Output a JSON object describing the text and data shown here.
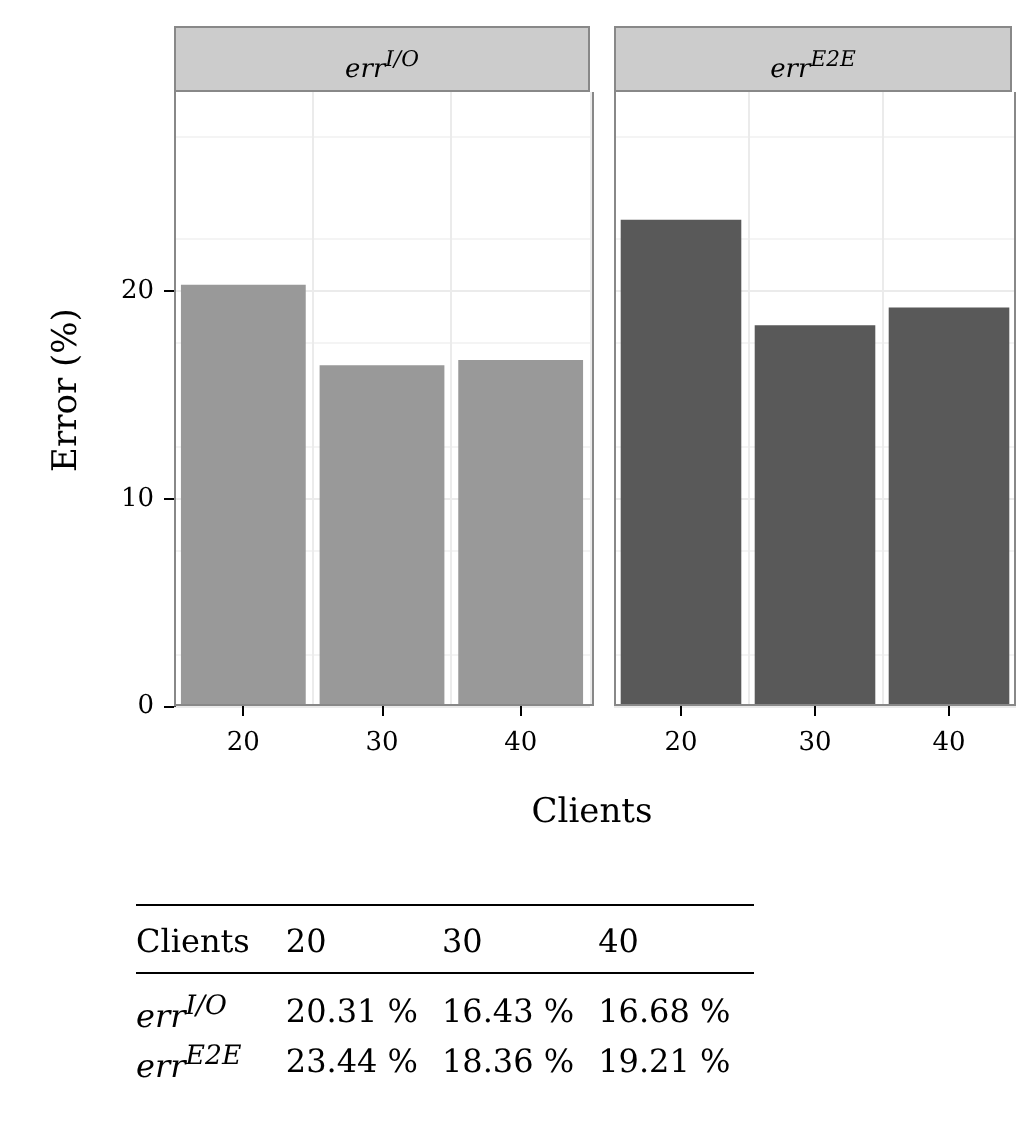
{
  "chart_data": [
    {
      "type": "bar",
      "title": "err$^{I/O}$",
      "categories": [
        "20",
        "30",
        "40"
      ],
      "values": [
        20.31,
        16.43,
        16.68
      ],
      "color": "#999999",
      "annotations": [
        "20.31 %",
        "16.43 %",
        "16.68 %"
      ],
      "ylabel": "Error (%)",
      "xlabel": "Clients",
      "ylim": [
        0,
        29.6
      ],
      "yticks": [
        0,
        10,
        20
      ],
      "grid": true
    },
    {
      "type": "bar",
      "title": "err$^{E2E}$",
      "categories": [
        "20",
        "30",
        "40"
      ],
      "values": [
        23.44,
        18.36,
        19.21
      ],
      "color": "#595959",
      "annotations": [
        "23.44 %",
        "18.36 %",
        "19.21 %"
      ],
      "ylim": [
        0,
        29.6
      ],
      "yticks": [
        0,
        10,
        20
      ],
      "grid": true,
      "tick_labels": "x"
    }
  ]
}
